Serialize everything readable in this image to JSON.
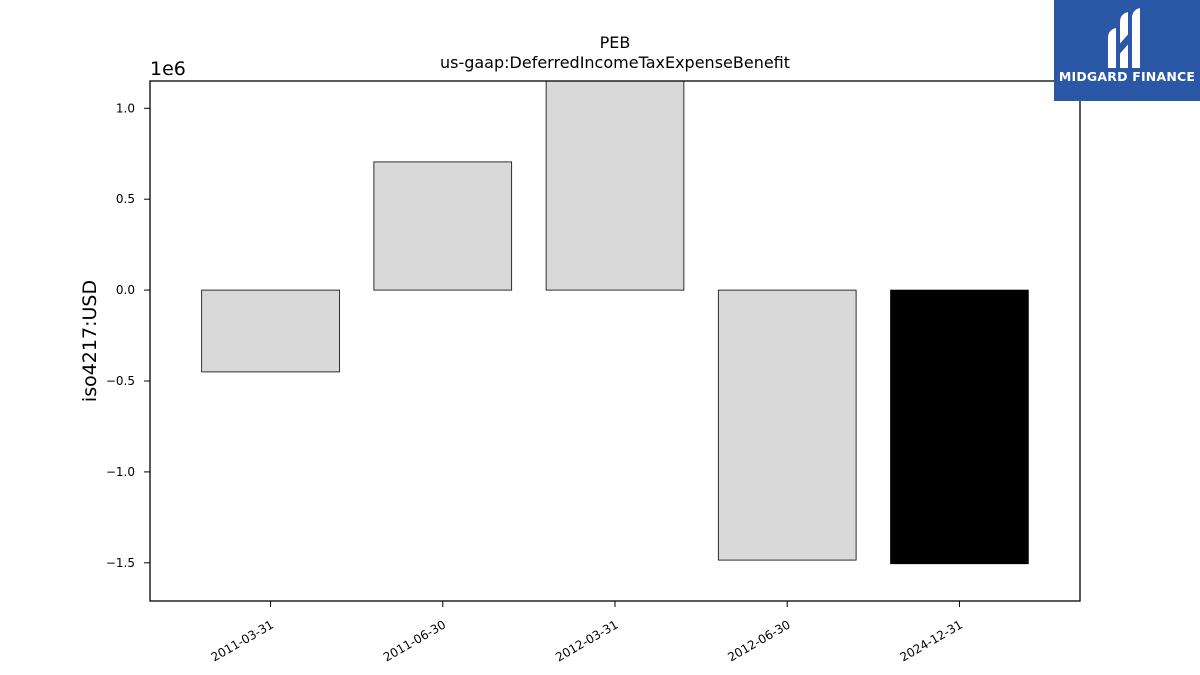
{
  "chart_data": {
    "type": "bar",
    "title": "PEB",
    "subtitle": "us-gaap:DeferredIncomeTaxExpenseBenefit",
    "ylabel": "iso4217:USD",
    "xlabel": "",
    "offset_label": "1e6",
    "categories": [
      "2011-03-31",
      "2011-06-30",
      "2012-03-31",
      "2012-06-30",
      "2024-12-31"
    ],
    "values": [
      -450000,
      705000,
      1150000,
      -1485000,
      -1505000
    ],
    "ylim": [
      -1710000,
      1150000
    ],
    "yticks": [
      1000000,
      500000,
      0,
      -500000,
      -1000000,
      -1500000
    ],
    "ytick_labels": [
      "1.0",
      "0.5",
      "0.0",
      "−0.5",
      "−1.0",
      "−1.5"
    ],
    "bar_colors": [
      "#d9d9d9",
      "#d9d9d9",
      "#d9d9d9",
      "#d9d9d9",
      "#000000"
    ],
    "grid": false,
    "legend": "none"
  },
  "logo": {
    "text": "MIDGARD FINANCE",
    "icon": "midgard-mark-icon",
    "background": "#2b57a7"
  }
}
